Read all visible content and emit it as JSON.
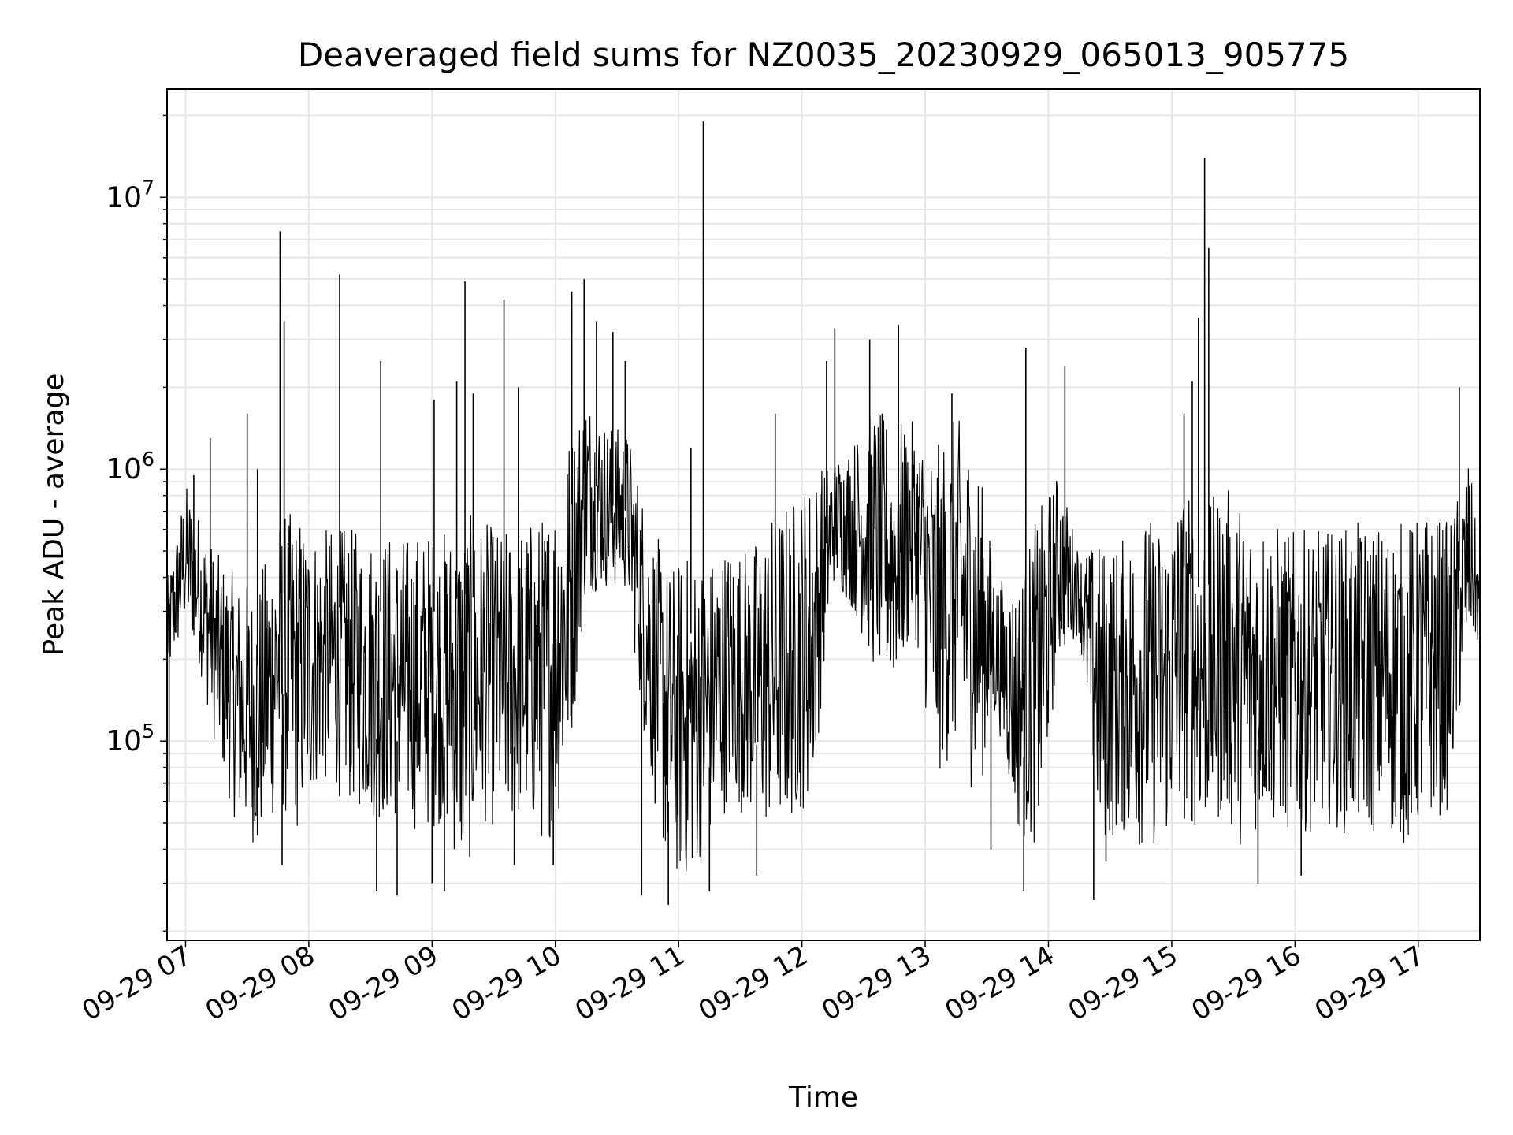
{
  "chart_data": {
    "type": "line",
    "title": "Deaveraged field sums for NZ0035_20230929_065013_905775",
    "xlabel": "Time",
    "ylabel": "Peak ADU - average",
    "y_scale": "log",
    "ylim": [
      18500,
      25000000
    ],
    "xlim": [
      "2023-09-29 06:51",
      "2023-09-29 17:30"
    ],
    "grid": true,
    "legend": "none",
    "line_color": "#000000",
    "x_ticks": [
      {
        "value": "2023-09-29 07:00",
        "label": "09-29 07"
      },
      {
        "value": "2023-09-29 08:00",
        "label": "09-29 08"
      },
      {
        "value": "2023-09-29 09:00",
        "label": "09-29 09"
      },
      {
        "value": "2023-09-29 10:00",
        "label": "09-29 10"
      },
      {
        "value": "2023-09-29 11:00",
        "label": "09-29 11"
      },
      {
        "value": "2023-09-29 12:00",
        "label": "09-29 12"
      },
      {
        "value": "2023-09-29 13:00",
        "label": "09-29 13"
      },
      {
        "value": "2023-09-29 14:00",
        "label": "09-29 14"
      },
      {
        "value": "2023-09-29 15:00",
        "label": "09-29 15"
      },
      {
        "value": "2023-09-29 16:00",
        "label": "09-29 16"
      },
      {
        "value": "2023-09-29 17:00",
        "label": "09-29 17"
      }
    ],
    "y_ticks": [
      {
        "value": 100000,
        "base": "10",
        "exponent": "5"
      },
      {
        "value": 1000000,
        "base": "10",
        "exponent": "6"
      },
      {
        "value": 10000000,
        "base": "10",
        "exponent": "7"
      }
    ],
    "series": [
      {
        "x": [
          "2023-09-29 06:51",
          "2023-09-29 07:00",
          "2023-09-29 07:06",
          "2023-09-29 07:15",
          "2023-09-29 07:25",
          "2023-09-29 07:35",
          "2023-09-29 07:45",
          "2023-09-29 07:55",
          "2023-09-29 08:05",
          "2023-09-29 08:15",
          "2023-09-29 08:25",
          "2023-09-29 08:35",
          "2023-09-29 08:45",
          "2023-09-29 08:55",
          "2023-09-29 09:05",
          "2023-09-29 09:15",
          "2023-09-29 09:25",
          "2023-09-29 09:35",
          "2023-09-29 09:45",
          "2023-09-29 09:55",
          "2023-09-29 10:05",
          "2023-09-29 10:15",
          "2023-09-29 10:25",
          "2023-09-29 10:35",
          "2023-09-29 10:45",
          "2023-09-29 10:55",
          "2023-09-29 11:05",
          "2023-09-29 11:15",
          "2023-09-29 11:25",
          "2023-09-29 11:35",
          "2023-09-29 11:45",
          "2023-09-29 11:55",
          "2023-09-29 12:05",
          "2023-09-29 12:15",
          "2023-09-29 12:25",
          "2023-09-29 12:35",
          "2023-09-29 12:45",
          "2023-09-29 12:55",
          "2023-09-29 13:05",
          "2023-09-29 13:15",
          "2023-09-29 13:25",
          "2023-09-29 13:35",
          "2023-09-29 13:45",
          "2023-09-29 13:55",
          "2023-09-29 14:05",
          "2023-09-29 14:15",
          "2023-09-29 14:25",
          "2023-09-29 14:35",
          "2023-09-29 14:45",
          "2023-09-29 14:55",
          "2023-09-29 15:05",
          "2023-09-29 15:15",
          "2023-09-29 15:25",
          "2023-09-29 15:35",
          "2023-09-29 15:45",
          "2023-09-29 15:55",
          "2023-09-29 16:05",
          "2023-09-29 16:15",
          "2023-09-29 16:25",
          "2023-09-29 16:35",
          "2023-09-29 16:45",
          "2023-09-29 16:55",
          "2023-09-29 17:05",
          "2023-09-29 17:15",
          "2023-09-29 17:25",
          "2023-09-29 17:30"
        ],
        "low": [
          160000,
          260000,
          200000,
          90000,
          48000,
          40000,
          55000,
          45000,
          70000,
          62000,
          55000,
          50000,
          50000,
          45000,
          50000,
          30000,
          50000,
          45000,
          50000,
          40000,
          60000,
          350000,
          360000,
          350000,
          80000,
          30000,
          30000,
          40000,
          60000,
          50000,
          45000,
          50000,
          60000,
          380000,
          300000,
          180000,
          150000,
          250000,
          70000,
          90000,
          60000,
          120000,
          45000,
          40000,
          200000,
          250000,
          40000,
          45000,
          40000,
          40000,
          50000,
          45000,
          50000,
          40000,
          50000,
          45000,
          45000,
          50000,
          45000,
          45000,
          45000,
          40000,
          50000,
          55000,
          230000,
          220000
        ],
        "high": [
          380000,
          900000,
          700000,
          500000,
          400000,
          380000,
          700000,
          700000,
          600000,
          620000,
          600000,
          600000,
          580000,
          600000,
          600000,
          700000,
          650000,
          600000,
          650000,
          700000,
          1300000,
          2000000,
          1500000,
          1400000,
          700000,
          450000,
          500000,
          480000,
          560000,
          520000,
          700000,
          800000,
          1000000,
          1100000,
          1300000,
          1700000,
          1500000,
          1500000,
          1200000,
          1600000,
          1200000,
          400000,
          400000,
          700000,
          1000000,
          500000,
          550000,
          550000,
          700000,
          650000,
          900000,
          700000,
          900000,
          750000,
          700000,
          600000,
          600000,
          600000,
          620000,
          650000,
          650000,
          650000,
          700000,
          650000,
          1100000,
          420000
        ],
        "peaks": [
          {
            "x": "2023-09-29 07:04",
            "y": 950000
          },
          {
            "x": "2023-09-29 07:12",
            "y": 1300000
          },
          {
            "x": "2023-09-29 07:30",
            "y": 1600000
          },
          {
            "x": "2023-09-29 07:35",
            "y": 1000000
          },
          {
            "x": "2023-09-29 07:46",
            "y": 7500000
          },
          {
            "x": "2023-09-29 07:48",
            "y": 3500000
          },
          {
            "x": "2023-09-29 08:15",
            "y": 5200000
          },
          {
            "x": "2023-09-29 08:35",
            "y": 2500000
          },
          {
            "x": "2023-09-29 09:01",
            "y": 1800000
          },
          {
            "x": "2023-09-29 09:12",
            "y": 2100000
          },
          {
            "x": "2023-09-29 09:16",
            "y": 4900000
          },
          {
            "x": "2023-09-29 09:20",
            "y": 1900000
          },
          {
            "x": "2023-09-29 09:35",
            "y": 4200000
          },
          {
            "x": "2023-09-29 09:42",
            "y": 2000000
          },
          {
            "x": "2023-09-29 10:08",
            "y": 4500000
          },
          {
            "x": "2023-09-29 10:14",
            "y": 5000000
          },
          {
            "x": "2023-09-29 10:20",
            "y": 3500000
          },
          {
            "x": "2023-09-29 10:28",
            "y": 3200000
          },
          {
            "x": "2023-09-29 10:34",
            "y": 2500000
          },
          {
            "x": "2023-09-29 11:06",
            "y": 1200000
          },
          {
            "x": "2023-09-29 11:12",
            "y": 19000000
          },
          {
            "x": "2023-09-29 11:47",
            "y": 1600000
          },
          {
            "x": "2023-09-29 12:12",
            "y": 2500000
          },
          {
            "x": "2023-09-29 12:16",
            "y": 3300000
          },
          {
            "x": "2023-09-29 12:33",
            "y": 3000000
          },
          {
            "x": "2023-09-29 12:47",
            "y": 3400000
          },
          {
            "x": "2023-09-29 13:13",
            "y": 1900000
          },
          {
            "x": "2023-09-29 13:49",
            "y": 2800000
          },
          {
            "x": "2023-09-29 14:08",
            "y": 2400000
          },
          {
            "x": "2023-09-29 15:06",
            "y": 1600000
          },
          {
            "x": "2023-09-29 15:10",
            "y": 2100000
          },
          {
            "x": "2023-09-29 15:13",
            "y": 3600000
          },
          {
            "x": "2023-09-29 15:16",
            "y": 14000000
          },
          {
            "x": "2023-09-29 15:18",
            "y": 6500000
          },
          {
            "x": "2023-09-29 17:20",
            "y": 2000000
          }
        ],
        "dips": [
          {
            "x": "2023-09-29 06:52",
            "y": 60000
          },
          {
            "x": "2023-09-29 07:35",
            "y": 45000
          },
          {
            "x": "2023-09-29 07:47",
            "y": 35000
          },
          {
            "x": "2023-09-29 08:33",
            "y": 28000
          },
          {
            "x": "2023-09-29 08:43",
            "y": 27000
          },
          {
            "x": "2023-09-29 09:00",
            "y": 30000
          },
          {
            "x": "2023-09-29 09:06",
            "y": 28000
          },
          {
            "x": "2023-09-29 09:40",
            "y": 35000
          },
          {
            "x": "2023-09-29 09:59",
            "y": 35000
          },
          {
            "x": "2023-09-29 10:42",
            "y": 27000
          },
          {
            "x": "2023-09-29 10:55",
            "y": 25000
          },
          {
            "x": "2023-09-29 11:15",
            "y": 28000
          },
          {
            "x": "2023-09-29 11:38",
            "y": 32000
          },
          {
            "x": "2023-09-29 13:32",
            "y": 40000
          },
          {
            "x": "2023-09-29 13:48",
            "y": 28000
          },
          {
            "x": "2023-09-29 14:22",
            "y": 26000
          },
          {
            "x": "2023-09-29 14:28",
            "y": 36000
          },
          {
            "x": "2023-09-29 15:42",
            "y": 30000
          },
          {
            "x": "2023-09-29 16:03",
            "y": 32000
          }
        ]
      }
    ]
  }
}
